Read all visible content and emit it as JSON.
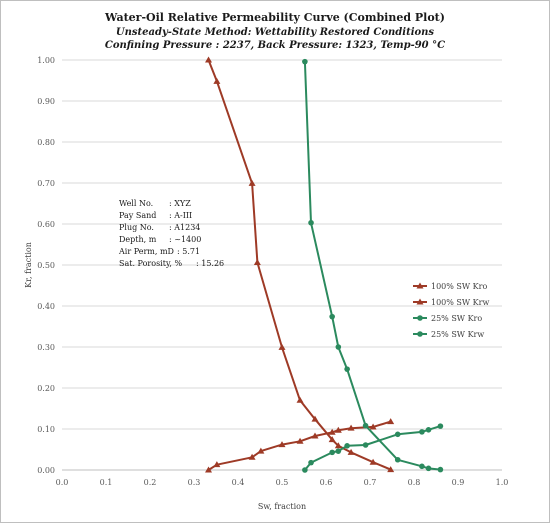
{
  "chart_data": {
    "type": "line",
    "title": "Water-Oil Relative Permeability Curve (Combined Plot)",
    "subtitle_1": "Unsteady-State Method: Wettability Restored Conditions",
    "subtitle_2": "Confining Pressure : 2237, Back Pressure: 1323, Temp-90 °C",
    "xlabel": "Sw, fraction",
    "ylabel": "Kr, fraction",
    "xlim": [
      0,
      1
    ],
    "ylim": [
      0,
      1
    ],
    "x_ticks": [
      "0.0",
      "0.1",
      "0.2",
      "0.3",
      "0.4",
      "0.5",
      "0.6",
      "0.7",
      "0.8",
      "0.9",
      "1.0"
    ],
    "y_ticks": [
      "0.00",
      "0.10",
      "0.20",
      "0.30",
      "0.40",
      "0.50",
      "0.60",
      "0.70",
      "0.80",
      "0.90",
      "1.00"
    ],
    "grid": "horizontal",
    "legend_position": "right",
    "series": [
      {
        "name": "100% SW Kro",
        "color": "#9e3a26",
        "marker": "triangle",
        "x": [
          0.333,
          0.352,
          0.432,
          0.444,
          0.5,
          0.541,
          0.575,
          0.614,
          0.628,
          0.657,
          0.707,
          0.747
        ],
        "y": [
          1.0,
          0.948,
          0.699,
          0.506,
          0.299,
          0.17,
          0.124,
          0.074,
          0.059,
          0.043,
          0.019,
          0.001
        ]
      },
      {
        "name": "100% SW Krw",
        "color": "#9e3a26",
        "marker": "triangle",
        "x": [
          0.333,
          0.352,
          0.432,
          0.452,
          0.5,
          0.541,
          0.575,
          0.614,
          0.628,
          0.657,
          0.707,
          0.747
        ],
        "y": [
          0.0,
          0.013,
          0.031,
          0.046,
          0.062,
          0.07,
          0.083,
          0.092,
          0.097,
          0.102,
          0.105,
          0.118
        ]
      },
      {
        "name": "25% SW Kro",
        "color": "#2b8a5e",
        "marker": "circle",
        "x": [
          0.552,
          0.566,
          0.614,
          0.628,
          0.648,
          0.69,
          0.763,
          0.818,
          0.833,
          0.86
        ],
        "y": [
          0.996,
          0.603,
          0.374,
          0.3,
          0.246,
          0.108,
          0.025,
          0.009,
          0.004,
          0.001
        ]
      },
      {
        "name": "25% SW Krw",
        "color": "#2b8a5e",
        "marker": "circle",
        "x": [
          0.552,
          0.566,
          0.614,
          0.628,
          0.648,
          0.69,
          0.763,
          0.818,
          0.833,
          0.86
        ],
        "y": [
          0.0,
          0.018,
          0.043,
          0.046,
          0.059,
          0.061,
          0.087,
          0.093,
          0.098,
          0.107
        ]
      }
    ]
  },
  "info_box": {
    "rows": [
      {
        "label": "Well No.",
        "value": ": XYZ"
      },
      {
        "label": "Pay Sand",
        "value": ": A-III"
      },
      {
        "label": "Plug No.",
        "value": ": A1234"
      },
      {
        "label": "Depth, m",
        "value": ": ~1400"
      },
      {
        "label": "Air Perm, mD",
        "value": ": 5.71"
      },
      {
        "label": "Sat. Porosity, %",
        "value": ": 15.26"
      }
    ]
  }
}
